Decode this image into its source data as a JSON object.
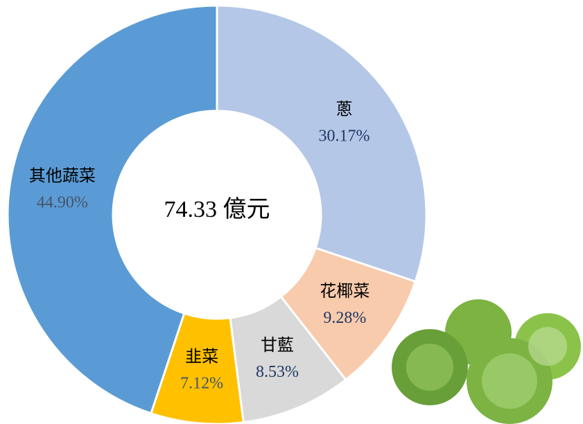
{
  "chart_data": {
    "type": "donut",
    "center_label": "74.33 億元",
    "categories": [
      "蔥",
      "花椰菜",
      "甘藍",
      "韭菜",
      "其他蔬菜"
    ],
    "values": [
      30.17,
      9.28,
      8.53,
      7.12,
      44.9
    ],
    "value_labels": [
      "30.17%",
      "9.28%",
      "8.53%",
      "7.12%",
      "44.90%"
    ],
    "colors": [
      "#b4c7e7",
      "#f8cbad",
      "#d9d9d9",
      "#ffc000",
      "#5b9bd5"
    ],
    "label_colors": [
      "#1f3864",
      "#1f3864",
      "#1f3864",
      "#44546a",
      "#44546a"
    ]
  }
}
